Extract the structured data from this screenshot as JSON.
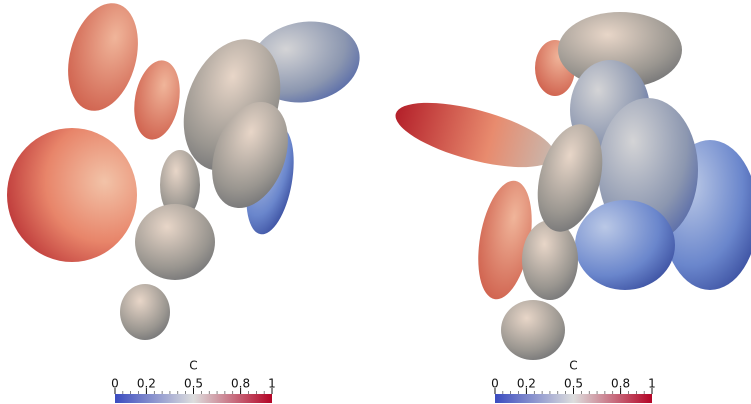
{
  "views": [
    {
      "colorbar": {
        "title": "C",
        "range": [
          0,
          1
        ],
        "ticks": [
          0,
          0.2,
          0.5,
          0.8,
          1
        ]
      }
    },
    {
      "colorbar": {
        "title": "C",
        "range": [
          0,
          1
        ],
        "ticks": [
          0,
          0.2,
          0.5,
          0.8,
          1
        ]
      }
    }
  ]
}
